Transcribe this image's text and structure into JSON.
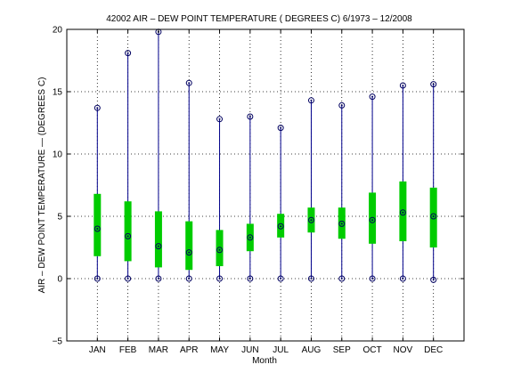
{
  "chart_data": {
    "type": "boxplot",
    "title": "42002  AIR – DEW POINT TEMPERATURE ( DEGREES C) 6/1973 – 12/2008",
    "xlabel": "Month",
    "ylabel": "AIR – DEW POINT TEMPERATURE  —  (DEGREES C)",
    "ylim": [
      -5,
      20
    ],
    "yticks": [
      -5,
      0,
      5,
      10,
      15,
      20
    ],
    "grid": true,
    "categories": [
      "JAN",
      "FEB",
      "MAR",
      "APR",
      "MAY",
      "JUN",
      "JUL",
      "AUG",
      "SEP",
      "OCT",
      "NOV",
      "DEC"
    ],
    "min": [
      0.0,
      0.0,
      0.0,
      0.0,
      0.0,
      0.0,
      0.0,
      0.0,
      0.0,
      0.0,
      0.0,
      -0.1
    ],
    "q1": [
      1.8,
      1.4,
      0.9,
      0.7,
      1.0,
      2.2,
      3.3,
      3.7,
      3.2,
      2.8,
      3.0,
      2.5
    ],
    "median": [
      4.0,
      3.4,
      2.6,
      2.1,
      2.3,
      3.3,
      4.2,
      4.7,
      4.4,
      4.7,
      5.3,
      5.0
    ],
    "q3": [
      6.8,
      6.2,
      5.4,
      4.6,
      3.9,
      4.4,
      5.2,
      5.7,
      5.7,
      6.9,
      7.8,
      7.3
    ],
    "max": [
      13.7,
      18.1,
      19.8,
      15.7,
      12.8,
      13.0,
      12.1,
      14.3,
      13.9,
      14.6,
      15.5,
      15.6
    ],
    "colors": {
      "whisker": "#00008b",
      "box": "#00cc00",
      "marker": "#000060",
      "grid": "#000000"
    }
  }
}
